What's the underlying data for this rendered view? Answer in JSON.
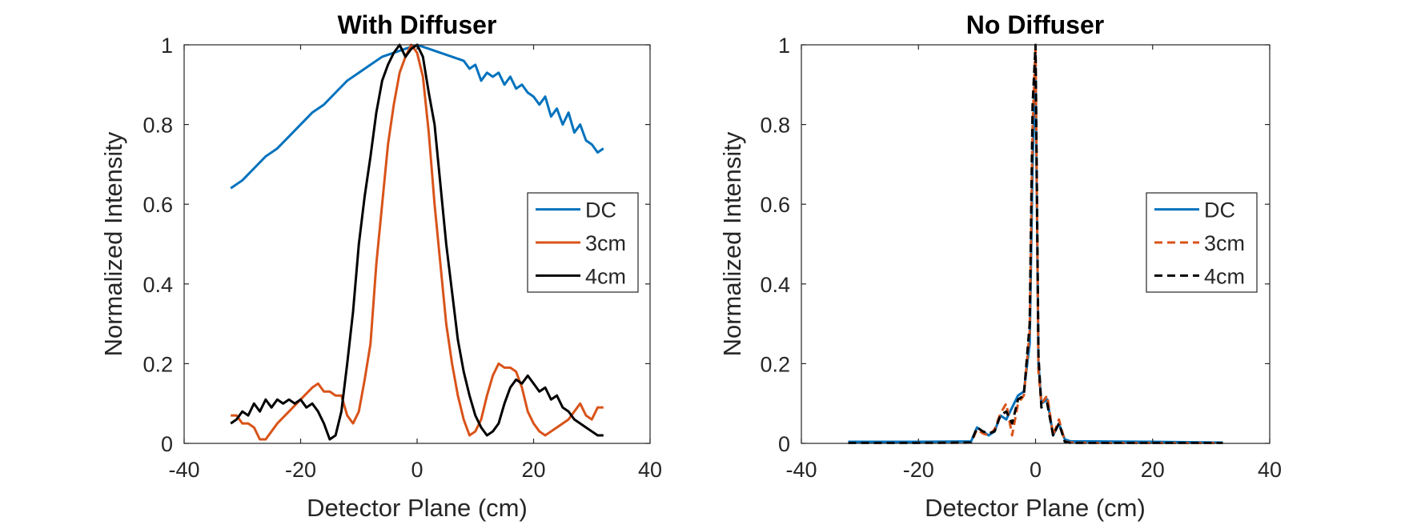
{
  "chart_data": [
    {
      "type": "line",
      "title": "With Diffuser",
      "xlabel": "Detector Plane (cm)",
      "ylabel": "Normalized Intensity",
      "xlim": [
        -40,
        40
      ],
      "ylim": [
        0,
        1
      ],
      "xticks": [
        "-40",
        "-20",
        "0",
        "20",
        "40"
      ],
      "yticks": [
        "0",
        "0.2",
        "0.4",
        "0.6",
        "0.8",
        "1"
      ],
      "grid": false,
      "legend": "right",
      "series": [
        {
          "name": "DC",
          "color": "#0072BD",
          "dash": "solid",
          "x": [
            -32,
            -30,
            -28,
            -26,
            -24,
            -22,
            -20,
            -18,
            -16,
            -14,
            -12,
            -10,
            -8,
            -6,
            -4,
            -2,
            0,
            2,
            4,
            6,
            8,
            9,
            10,
            11,
            12,
            13,
            14,
            15,
            16,
            17,
            18,
            19,
            20,
            21,
            22,
            23,
            24,
            25,
            26,
            27,
            28,
            29,
            30,
            31,
            32
          ],
          "y": [
            0.64,
            0.66,
            0.69,
            0.72,
            0.74,
            0.77,
            0.8,
            0.83,
            0.85,
            0.88,
            0.91,
            0.93,
            0.95,
            0.97,
            0.98,
            0.99,
            1.0,
            0.99,
            0.98,
            0.97,
            0.96,
            0.94,
            0.95,
            0.91,
            0.93,
            0.92,
            0.93,
            0.9,
            0.92,
            0.89,
            0.9,
            0.88,
            0.87,
            0.85,
            0.87,
            0.82,
            0.84,
            0.8,
            0.83,
            0.78,
            0.8,
            0.76,
            0.75,
            0.73,
            0.74
          ]
        },
        {
          "name": "3cm",
          "color": "#D95319",
          "dash": "solid",
          "x": [
            -32,
            -31,
            -30,
            -29,
            -28,
            -27,
            -26,
            -25,
            -24,
            -22,
            -20,
            -18,
            -17,
            -16,
            -15,
            -14,
            -13,
            -12,
            -11,
            -10,
            -9,
            -8,
            -7,
            -6,
            -5,
            -4,
            -3,
            -2,
            -1,
            0,
            1,
            2,
            3,
            4,
            5,
            6,
            7,
            8,
            9,
            10,
            11,
            12,
            13,
            14,
            15,
            16,
            17,
            18,
            19,
            20,
            21,
            22,
            23,
            24,
            25,
            26,
            27,
            28,
            29,
            30,
            31,
            32
          ],
          "y": [
            0.07,
            0.07,
            0.05,
            0.05,
            0.04,
            0.01,
            0.01,
            0.03,
            0.05,
            0.08,
            0.11,
            0.14,
            0.15,
            0.13,
            0.13,
            0.12,
            0.12,
            0.07,
            0.05,
            0.08,
            0.16,
            0.25,
            0.45,
            0.6,
            0.75,
            0.85,
            0.93,
            0.97,
            1.0,
            0.98,
            0.92,
            0.78,
            0.6,
            0.45,
            0.3,
            0.2,
            0.12,
            0.06,
            0.02,
            0.03,
            0.06,
            0.12,
            0.17,
            0.2,
            0.19,
            0.19,
            0.18,
            0.14,
            0.08,
            0.05,
            0.03,
            0.02,
            0.03,
            0.04,
            0.05,
            0.06,
            0.08,
            0.1,
            0.07,
            0.06,
            0.09,
            0.09
          ]
        },
        {
          "name": "4cm",
          "color": "#000000",
          "dash": "solid",
          "x": [
            -32,
            -31,
            -30,
            -29,
            -28,
            -27,
            -26,
            -25,
            -24,
            -23,
            -22,
            -21,
            -20,
            -19,
            -18,
            -17,
            -16,
            -15,
            -14,
            -13,
            -12,
            -11,
            -10,
            -9,
            -8,
            -7,
            -6,
            -5,
            -4,
            -3,
            -2,
            -1,
            0,
            1,
            2,
            3,
            4,
            5,
            6,
            7,
            8,
            9,
            10,
            11,
            12,
            13,
            14,
            15,
            16,
            17,
            18,
            19,
            20,
            21,
            22,
            23,
            24,
            25,
            26,
            27,
            28,
            29,
            30,
            31,
            32
          ],
          "y": [
            0.05,
            0.06,
            0.08,
            0.07,
            0.1,
            0.08,
            0.11,
            0.09,
            0.11,
            0.1,
            0.11,
            0.1,
            0.11,
            0.09,
            0.1,
            0.08,
            0.05,
            0.01,
            0.02,
            0.08,
            0.2,
            0.33,
            0.5,
            0.62,
            0.72,
            0.83,
            0.91,
            0.95,
            0.98,
            1.0,
            0.97,
            0.99,
            1.0,
            0.97,
            0.88,
            0.8,
            0.65,
            0.5,
            0.38,
            0.26,
            0.18,
            0.12,
            0.07,
            0.04,
            0.02,
            0.03,
            0.05,
            0.1,
            0.14,
            0.16,
            0.15,
            0.17,
            0.15,
            0.13,
            0.14,
            0.11,
            0.12,
            0.09,
            0.08,
            0.06,
            0.05,
            0.04,
            0.03,
            0.02,
            0.02
          ]
        }
      ]
    },
    {
      "type": "line",
      "title": "No Diffuser",
      "xlabel": "Detector Plane (cm)",
      "ylabel": "Normalized Intensity",
      "xlim": [
        -40,
        40
      ],
      "ylim": [
        0,
        1
      ],
      "xticks": [
        "-40",
        "-20",
        "0",
        "20",
        "40"
      ],
      "yticks": [
        "0",
        "0.2",
        "0.4",
        "0.6",
        "0.8",
        "1"
      ],
      "grid": false,
      "legend": "right",
      "series": [
        {
          "name": "DC",
          "color": "#0072BD",
          "dash": "solid",
          "x": [
            -32,
            -20,
            -11,
            -10,
            -9,
            -8,
            -7,
            -6,
            -5,
            -4,
            -3,
            -2,
            -1,
            -0.5,
            0,
            0.5,
            1,
            2,
            3,
            4,
            5,
            6,
            10,
            20,
            32
          ],
          "y": [
            0.004,
            0.004,
            0.005,
            0.04,
            0.03,
            0.02,
            0.03,
            0.07,
            0.06,
            0.09,
            0.12,
            0.13,
            0.25,
            0.7,
            0.95,
            0.2,
            0.1,
            0.11,
            0.02,
            0.05,
            0.01,
            0.005,
            0.005,
            0.004,
            0.002
          ]
        },
        {
          "name": "3cm",
          "color": "#D95319",
          "dash": "dashed",
          "x": [
            -32,
            -20,
            -11,
            -10,
            -9,
            -8,
            -7,
            -6,
            -5,
            -4,
            -3,
            -2,
            -1,
            -0.5,
            0,
            0.5,
            1,
            2,
            3,
            4,
            5,
            6,
            10,
            20,
            32
          ],
          "y": [
            0.001,
            0.001,
            0.002,
            0.035,
            0.025,
            0.02,
            0.035,
            0.075,
            0.1,
            0.02,
            0.1,
            0.12,
            0.28,
            0.8,
            1.0,
            0.18,
            0.1,
            0.12,
            0.02,
            0.06,
            0.005,
            0.002,
            0.001,
            0.001,
            0.001
          ]
        },
        {
          "name": "4cm",
          "color": "#000000",
          "dash": "dashed",
          "x": [
            -32,
            -20,
            -11,
            -10,
            -9,
            -8,
            -7,
            -6,
            -5,
            -4,
            -3,
            -2,
            -1,
            -0.5,
            0,
            0.5,
            1,
            2,
            3,
            4,
            5,
            6,
            10,
            20,
            32
          ],
          "y": [
            0.001,
            0.001,
            0.002,
            0.04,
            0.03,
            0.025,
            0.03,
            0.07,
            0.08,
            0.05,
            0.11,
            0.12,
            0.3,
            0.85,
            1.0,
            0.22,
            0.09,
            0.1,
            0.02,
            0.05,
            0.004,
            0.001,
            0.001,
            0.001,
            0.001
          ]
        }
      ]
    }
  ]
}
